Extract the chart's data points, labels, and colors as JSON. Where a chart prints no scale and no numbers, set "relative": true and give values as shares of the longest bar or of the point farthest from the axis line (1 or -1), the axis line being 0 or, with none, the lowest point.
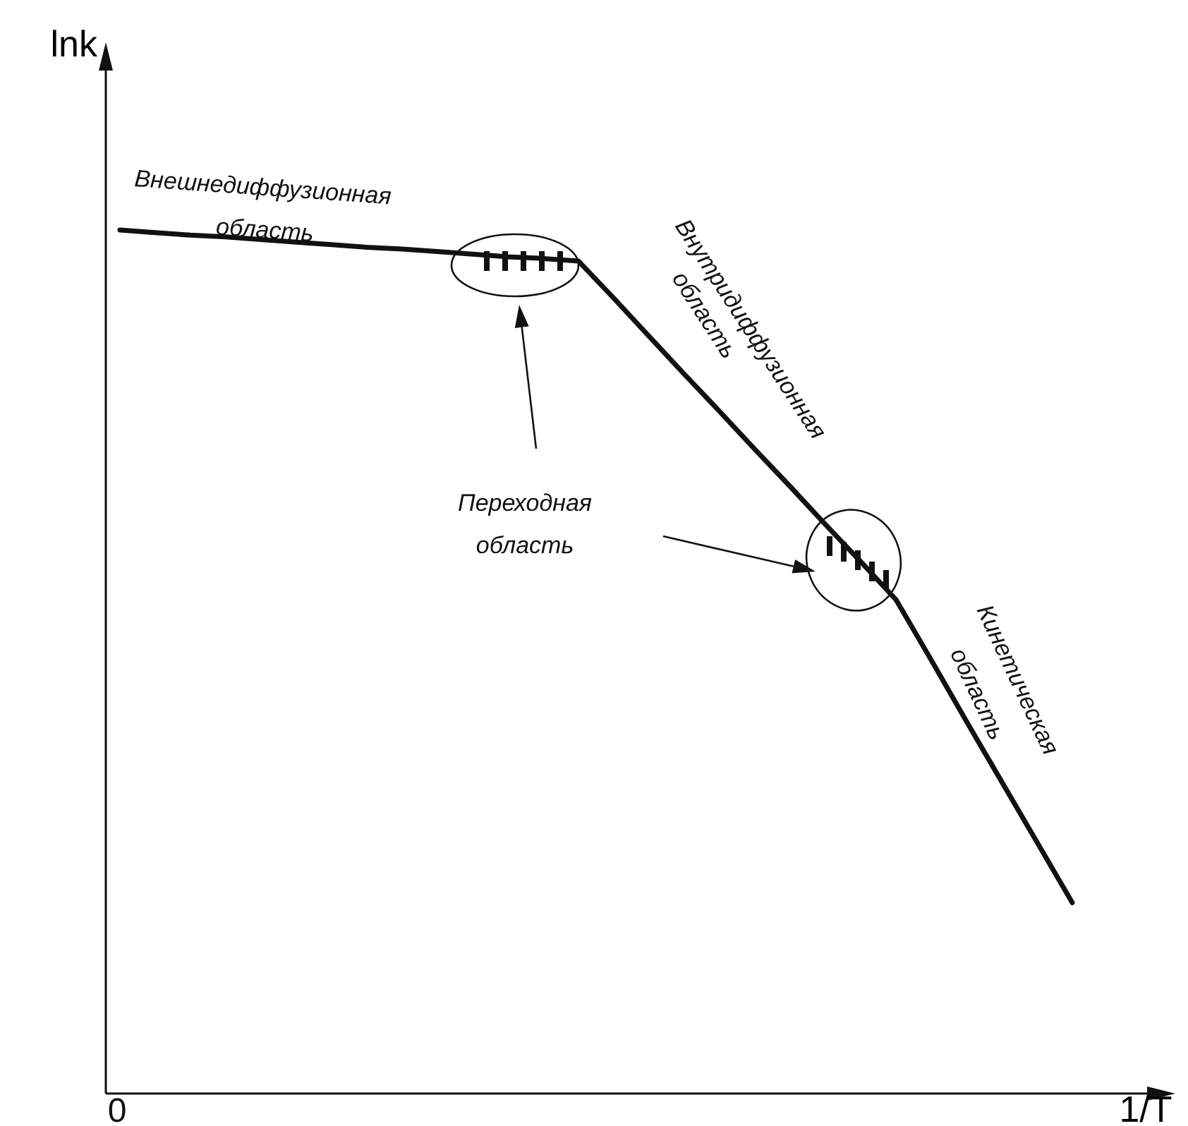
{
  "chart_data": {
    "type": "line",
    "relative": true,
    "xlabel": "1/T",
    "ylabel": "lnk",
    "categories": [
      null,
      null,
      null,
      null,
      null,
      null,
      null,
      null,
      null,
      null,
      null,
      null,
      null,
      null,
      null,
      null,
      null,
      null,
      null,
      null,
      null,
      null,
      null,
      null,
      null,
      null,
      null,
      null
    ],
    "series": [
      {
        "color": "#111111",
        "values": [
          1.0,
          0.997,
          0.994,
          0.992,
          0.989,
          0.986,
          0.983,
          0.98,
          0.978,
          0.975,
          0.972,
          0.969,
          0.967,
          0.964,
          0.921,
          0.877,
          0.833,
          0.79,
          0.746,
          0.703,
          0.659,
          0.616,
          0.572,
          0.502,
          0.431,
          0.361,
          0.291,
          0.221
        ]
      }
    ],
    "annotations": [
      "Внешнедиффузионная\nобласть",
      "Внутридиффузионная\nобласть",
      "Переходная\nобласть",
      "Кинетическая\nобласть",
      "0"
    ]
  }
}
